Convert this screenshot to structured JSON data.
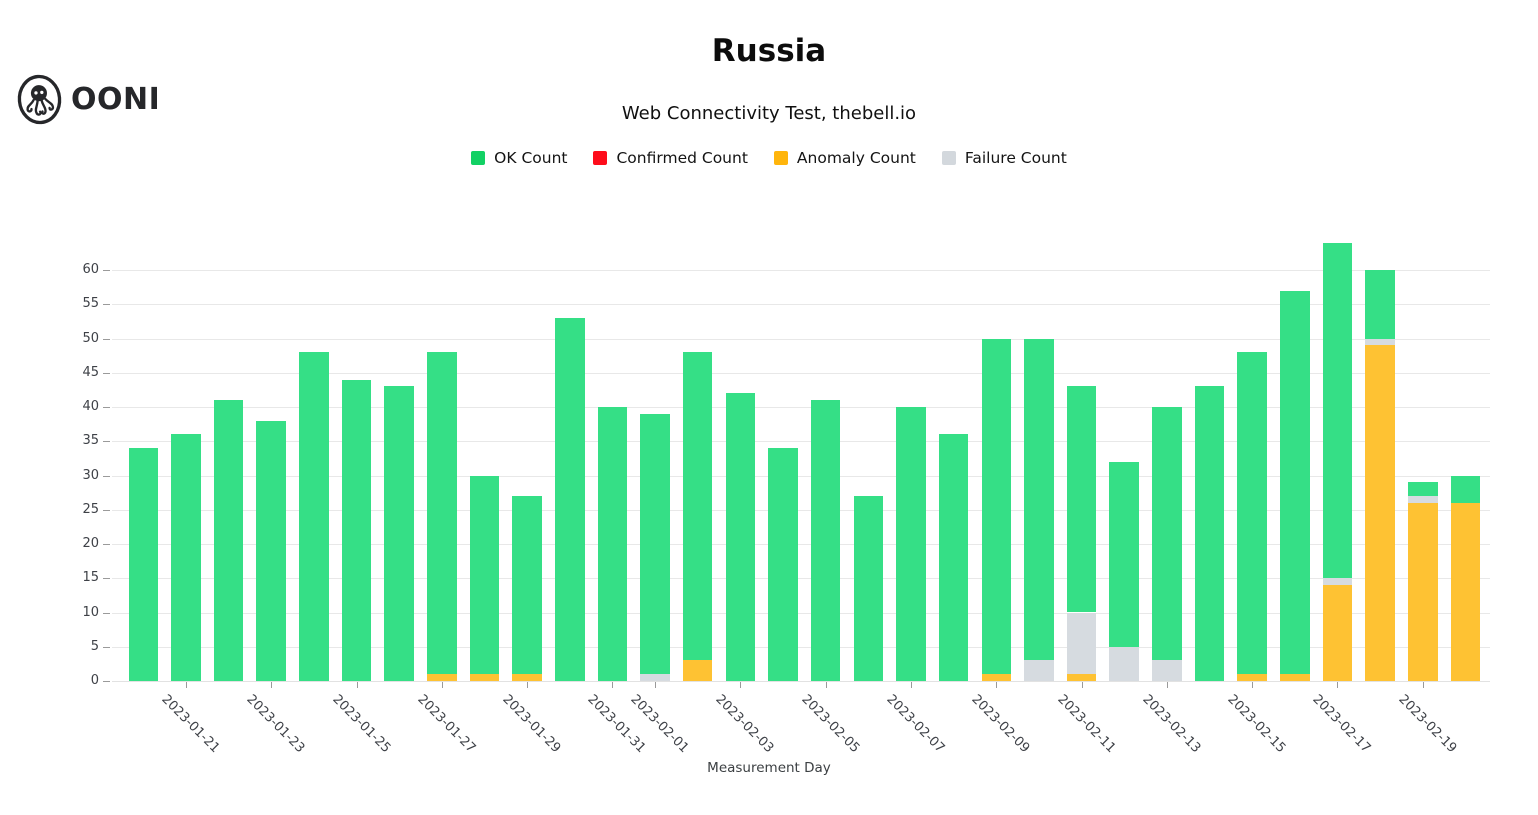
{
  "logo": {
    "brand": "OONI",
    "icon": "ooni-octopus-icon"
  },
  "header": {
    "title": "Russia",
    "subtitle": "Web Connectivity Test, thebell.io"
  },
  "legend": [
    {
      "label": "OK Count",
      "color": "#12d164"
    },
    {
      "label": "Confirmed Count",
      "color": "#fe0d1b"
    },
    {
      "label": "Anomaly Count",
      "color": "#ffb50c"
    },
    {
      "label": "Failure Count",
      "color": "#d3d8dd"
    }
  ],
  "chart_data": {
    "type": "bar",
    "stacked": true,
    "title": "Russia",
    "subtitle": "Web Connectivity Test, thebell.io",
    "xlabel": "Measurement Day",
    "ylabel": "",
    "ylim": [
      0,
      65
    ],
    "yticks": [
      0,
      5,
      10,
      15,
      20,
      25,
      30,
      35,
      40,
      45,
      50,
      55,
      60
    ],
    "grid": true,
    "legend_position": "top-center",
    "categories": [
      "2023-01-20",
      "2023-01-21",
      "2023-01-22",
      "2023-01-23",
      "2023-01-24",
      "2023-01-25",
      "2023-01-26",
      "2023-01-27",
      "2023-01-28",
      "2023-01-29",
      "2023-01-30",
      "2023-01-31",
      "2023-02-01",
      "2023-02-02",
      "2023-02-03",
      "2023-02-04",
      "2023-02-05",
      "2023-02-06",
      "2023-02-07",
      "2023-02-08",
      "2023-02-09",
      "2023-02-10",
      "2023-02-11",
      "2023-02-12",
      "2023-02-13",
      "2023-02-14",
      "2023-02-15",
      "2023-02-16",
      "2023-02-17",
      "2023-02-18",
      "2023-02-19",
      "2023-02-20"
    ],
    "xtick_labels_shown": [
      "2023-01-21",
      "2023-01-23",
      "2023-01-25",
      "2023-01-27",
      "2023-01-29",
      "2023-01-31",
      "2023-02-01",
      "2023-02-03",
      "2023-02-05",
      "2023-02-07",
      "2023-02-09",
      "2023-02-11",
      "2023-02-13",
      "2023-02-15",
      "2023-02-17",
      "2023-02-19"
    ],
    "series": [
      {
        "name": "Confirmed Count",
        "key": "confirmed",
        "color": "#fe3d4a",
        "values": [
          0,
          0,
          0,
          0,
          0,
          0,
          0,
          0,
          0,
          0,
          0,
          0,
          0,
          0,
          0,
          0,
          0,
          0,
          0,
          0,
          0,
          0,
          0,
          0,
          0,
          0,
          0,
          0,
          0,
          0,
          0,
          0
        ]
      },
      {
        "name": "Anomaly Count",
        "key": "anomaly",
        "color": "#fec233",
        "values": [
          0,
          0,
          0,
          0,
          0,
          0,
          0,
          1,
          1,
          1,
          0,
          0,
          0,
          3,
          0,
          0,
          0,
          0,
          0,
          0,
          1,
          0,
          1,
          0,
          0,
          0,
          1,
          1,
          14,
          49,
          26,
          26
        ]
      },
      {
        "name": "Failure Count",
        "key": "failure",
        "color": "#d6dbe0",
        "values": [
          0,
          0,
          0,
          0,
          0,
          0,
          0,
          0,
          0,
          0,
          0,
          0,
          1,
          0,
          0,
          0,
          0,
          0,
          0,
          0,
          0,
          3,
          9,
          5,
          3,
          0,
          0,
          0,
          1,
          1,
          1,
          0
        ]
      },
      {
        "name": "OK Count",
        "key": "ok",
        "color": "#35df86",
        "values": [
          34,
          36,
          41,
          38,
          48,
          44,
          43,
          47,
          29,
          26,
          53,
          40,
          38,
          45,
          42,
          34,
          41,
          27,
          40,
          36,
          49,
          47,
          33,
          27,
          37,
          43,
          47,
          56,
          49,
          10,
          2,
          4
        ]
      }
    ]
  }
}
